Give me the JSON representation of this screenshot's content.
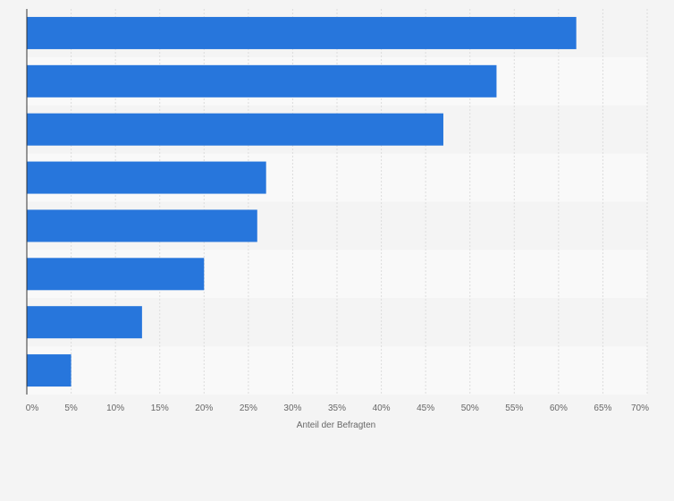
{
  "chart_data": {
    "type": "bar",
    "orientation": "horizontal",
    "categories": [
      "",
      "",
      "",
      "",
      "",
      "",
      "",
      ""
    ],
    "values": [
      62,
      53,
      47,
      27,
      26,
      20,
      13,
      5
    ],
    "xlim": [
      0,
      70
    ],
    "ticks": [
      0,
      5,
      10,
      15,
      20,
      25,
      30,
      35,
      40,
      45,
      50,
      55,
      60,
      65,
      70
    ],
    "tick_labels": [
      "0%",
      "5%",
      "10%",
      "15%",
      "20%",
      "25%",
      "30%",
      "35%",
      "40%",
      "45%",
      "50%",
      "55%",
      "60%",
      "65%",
      "70%"
    ],
    "xlabel": "Anteil der Befragten",
    "ylabel": "",
    "title": "",
    "grid": true,
    "legend": "none"
  },
  "colors": {
    "bar": "#2776dc",
    "band_light": "#f9f9f9",
    "band_dark": "#f4f4f4",
    "grid": "#dddddd",
    "axis": "#333333",
    "text": "#666666"
  }
}
